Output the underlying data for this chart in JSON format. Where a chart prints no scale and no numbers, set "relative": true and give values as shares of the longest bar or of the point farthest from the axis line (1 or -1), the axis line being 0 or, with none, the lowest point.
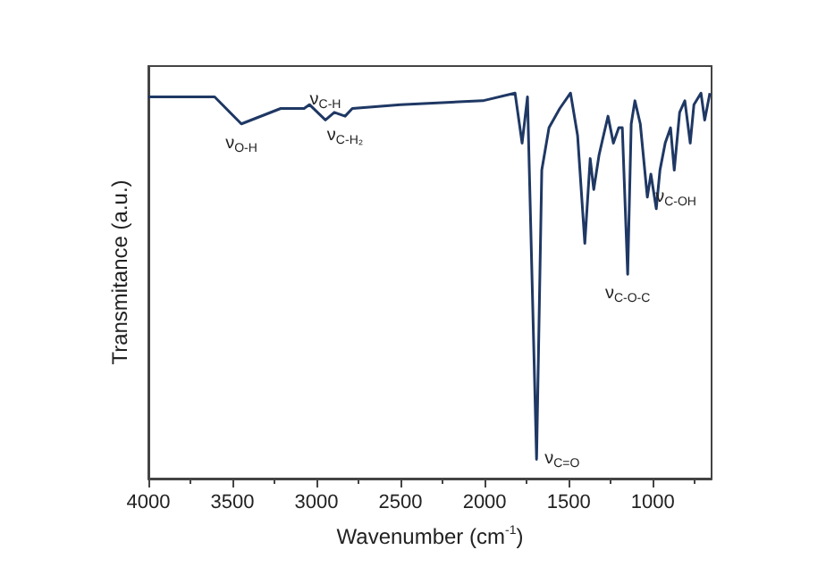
{
  "chart_data": {
    "type": "line",
    "relative": true,
    "xlabel": "Wavenumber (cm$^{-1}$)",
    "ylabel": "Transmitance (a.u.)",
    "xlim": [
      4000,
      650
    ],
    "xticks": [
      4000,
      3500,
      3000,
      2500,
      2000,
      1500,
      1000
    ],
    "tick_labels": "x",
    "grid": false,
    "marker": "none",
    "line_style": "solid",
    "series": [
      {
        "color": "#1f3864",
        "x": [
          4000,
          3606,
          3447,
          3213,
          3074,
          3042,
          2947,
          2894,
          2830,
          2787,
          2500,
          2011,
          1819,
          1777,
          1745,
          1691,
          1660,
          1617,
          1553,
          1489,
          1447,
          1404,
          1372,
          1351,
          1319,
          1298,
          1266,
          1234,
          1202,
          1181,
          1149,
          1128,
          1106,
          1074,
          1032,
          1011,
          979,
          957,
          926,
          894,
          872,
          840,
          809,
          777,
          755,
          713,
          691,
          660
        ],
        "values": [
          0.99,
          0.99,
          0.92,
          0.96,
          0.96,
          0.97,
          0.93,
          0.95,
          0.94,
          0.96,
          0.97,
          0.98,
          1.0,
          0.87,
          0.99,
          0.05,
          0.8,
          0.91,
          0.96,
          1.0,
          0.89,
          0.61,
          0.83,
          0.75,
          0.84,
          0.88,
          0.94,
          0.87,
          0.91,
          0.91,
          0.53,
          0.92,
          0.98,
          0.92,
          0.73,
          0.79,
          0.7,
          0.8,
          0.87,
          0.91,
          0.8,
          0.95,
          0.98,
          0.87,
          0.97,
          1.0,
          0.93,
          1.0
        ]
      }
    ],
    "annotations": [
      {
        "text": "ν$_{O-H}$",
        "x": 3447,
        "y": 0.92
      },
      {
        "text": "ν$_{C-H}$",
        "x": 2947,
        "y": 0.93
      },
      {
        "text": "ν$_{C-H₂}$",
        "x": 2830,
        "y": 0.94
      },
      {
        "text": "ν$_{C=O}$",
        "x": 1691,
        "y": 0.05
      },
      {
        "text": "ν$_{C-O-C}$",
        "x": 1149,
        "y": 0.53
      },
      {
        "text": "ν$_{C-OH}$",
        "x": 1032,
        "y": 0.73
      }
    ]
  }
}
